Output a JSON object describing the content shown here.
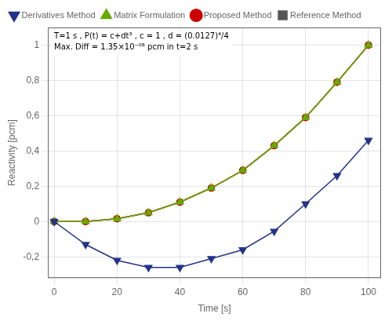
{
  "chart_data": {
    "type": "line",
    "xlabel": "Time [s]",
    "ylabel": "Reactivity [pcm]",
    "annotations": [
      "T=1 s , P(t) = c+dt³ , c = 1 , d = (0.0127)⁴/4",
      "Max. Diff = 1.35×10⁻⁰⁸ pcm in t=2 s"
    ],
    "x": [
      0,
      10,
      20,
      30,
      40,
      50,
      60,
      70,
      80,
      90,
      100
    ],
    "series": [
      {
        "name": "Reference Method",
        "color": "#555555",
        "marker": "square",
        "values": [
          0.0,
          0.0,
          0.016,
          0.05,
          0.11,
          0.19,
          0.29,
          0.43,
          0.59,
          0.79,
          1.0
        ]
      },
      {
        "name": "Proposed Method",
        "color": "#cc0000",
        "marker": "circle",
        "values": [
          0.0,
          0.0,
          0.016,
          0.05,
          0.11,
          0.19,
          0.29,
          0.43,
          0.59,
          0.79,
          1.0
        ]
      },
      {
        "name": "Matrix Formulation",
        "color": "#66aa00",
        "marker": "triangle",
        "values": [
          0.0,
          0.0,
          0.016,
          0.05,
          0.11,
          0.19,
          0.29,
          0.43,
          0.59,
          0.79,
          1.0
        ]
      },
      {
        "name": "Derivatives Method",
        "color": "#223388",
        "marker": "triangle_down",
        "values": [
          0.0,
          -0.13,
          -0.22,
          -0.26,
          -0.26,
          -0.21,
          -0.16,
          -0.055,
          0.1,
          0.26,
          0.46
        ]
      }
    ],
    "xlim": [
      -2,
      104
    ],
    "ylim": [
      -0.32,
      1.1
    ],
    "xticks": [
      0,
      20,
      40,
      60,
      80,
      100
    ],
    "yticks": [
      {
        "value": -0.2,
        "label": "-0,2"
      },
      0,
      {
        "value": 0.2,
        "label": "0,2"
      },
      {
        "value": 0.4,
        "label": "0,4"
      },
      {
        "value": 0.6,
        "label": "0,6"
      },
      {
        "value": 0.8,
        "label": "0,8"
      },
      1
    ],
    "grid": true,
    "legend": "upper left"
  }
}
